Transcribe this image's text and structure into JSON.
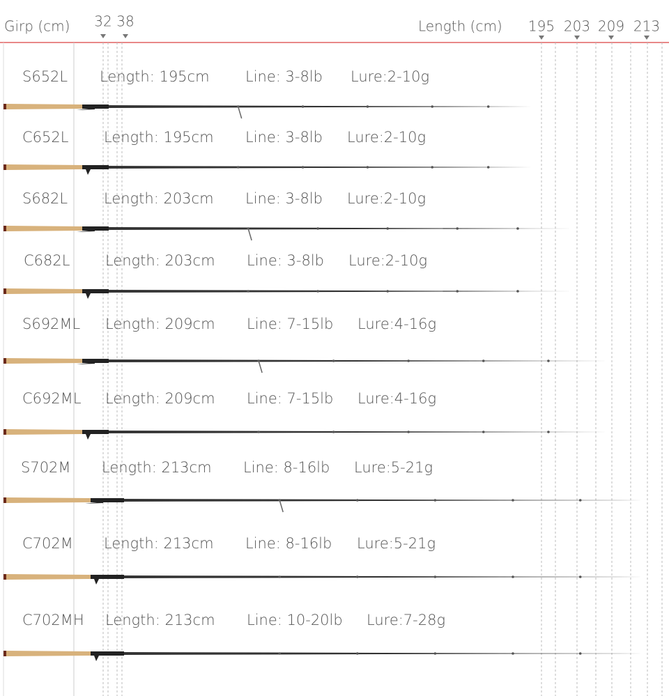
{
  "header": {
    "grip_label": "Girp (cm)",
    "grip_ticks": [
      "32",
      "38"
    ],
    "length_label": "Length (cm)",
    "length_ticks": [
      "195",
      "203",
      "209",
      "213"
    ]
  },
  "rows": [
    {
      "model": "S652L",
      "length": "Length: 195cm",
      "line": "Line: 3-8lb",
      "lure": "Lure:2-10g"
    },
    {
      "model": "C652L",
      "length": "Length: 195cm",
      "line": "Line: 3-8lb",
      "lure": "Lure:2-10g"
    },
    {
      "model": "S682L",
      "length": "Length: 203cm",
      "line": "Line: 3-8lb",
      "lure": "Lure:2-10g"
    },
    {
      "model": "C682L",
      "length": "Length: 203cm",
      "line": "Line: 3-8lb",
      "lure": "Lure:2-10g"
    },
    {
      "model": "S692ML",
      "length": "Length: 209cm",
      "line": "Line: 7-15lb",
      "lure": "Lure:4-16g"
    },
    {
      "model": "C692ML",
      "length": "Length: 209cm",
      "line": "Line: 7-15lb",
      "lure": "Lure:4-16g"
    },
    {
      "model": "S702M",
      "length": "Length: 213cm",
      "line": "Line: 8-16lb",
      "lure": "Lure:5-21g"
    },
    {
      "model": "C702M",
      "length": "Length: 213cm",
      "line": "Line: 8-16lb",
      "lure": "Lure:5-21g"
    },
    {
      "model": "C702MH",
      "length": "Length: 213cm",
      "line": "Line: 10-20lb",
      "lure": "Lure:7-28g"
    }
  ]
}
